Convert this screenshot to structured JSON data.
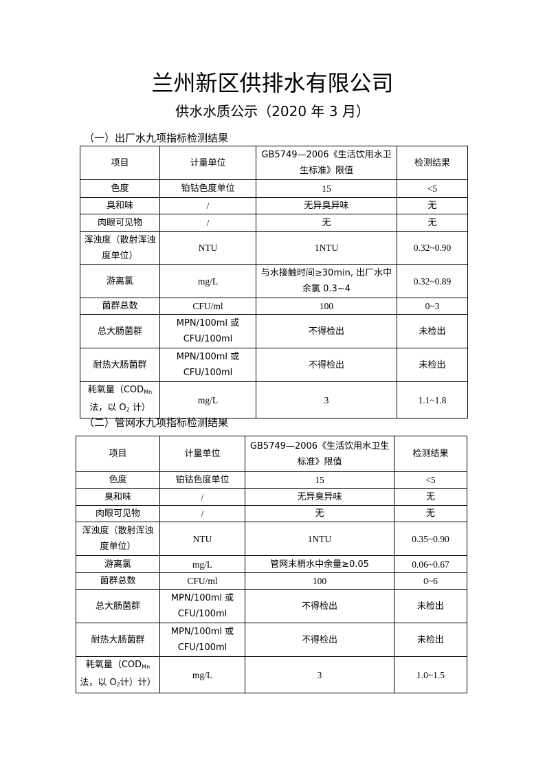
{
  "title": "兰州新区供排水有限公司",
  "subtitle": "供水水质公示（2020 年 3 月）",
  "tables": [
    {
      "heading": "（一）出厂水九项指标检测结果",
      "header": [
        "项目",
        "计量单位",
        "GB5749—2006《生活饮用水卫生标准》限值",
        "检测结果"
      ],
      "rows": [
        [
          "色度",
          "铂钴色度单位",
          "15",
          "<5"
        ],
        [
          "臭和味",
          "/",
          "无异臭异味",
          "无"
        ],
        [
          "肉眼可见物",
          "/",
          "无",
          "无"
        ],
        [
          "浑浊度（散射浑浊度单位）",
          "NTU",
          "1NTU",
          "0.32~0.90"
        ],
        [
          "游离氯",
          "mg/L",
          "与水接触时间≥30min, 出厂水中余氯 0.3~4",
          "0.32~0.89"
        ],
        [
          "菌群总数",
          "CFU/ml",
          "100",
          "0~3"
        ],
        [
          "总大肠菌群",
          "MPN/100ml 或 CFU/100ml",
          "不得检出",
          "未检出"
        ],
        [
          "耐热大肠菌群",
          "MPN/100ml 或 CFU/100ml",
          "不得检出",
          "未检出"
        ]
      ],
      "last": {
        "item_a": "耗氧量（COD",
        "sub_a": "Mn",
        "item_b": "法，以 O",
        "sub_b": "2",
        "item_c": " 计）",
        "unit": "mg/L",
        "limit": "3",
        "result": "1.1~1.8"
      }
    },
    {
      "heading": "（二）管网水九项指标检测结果",
      "header": [
        "项目",
        "计量单位",
        "GB5749—2006《生活饮用水卫生标准》限值",
        "检测结果"
      ],
      "rows": [
        [
          "色度",
          "铂钴色度单位",
          "15",
          "<5"
        ],
        [
          "臭和味",
          "/",
          "无异臭异味",
          "无"
        ],
        [
          "肉眼可见物",
          "/",
          "无",
          "无"
        ],
        [
          "浑浊度（散射浑浊度单位）",
          "NTU",
          "1NTU",
          "0.35~0.90"
        ],
        [
          "游离氯",
          "mg/L",
          "管网末梢水中余量≥0.05",
          "0.06~0.67"
        ],
        [
          "菌群总数",
          "CFU/ml",
          "100",
          "0~6"
        ],
        [
          "总大肠菌群",
          "MPN/100ml 或 CFU/100ml",
          "不得检出",
          "未检出"
        ],
        [
          "耐热大肠菌群",
          "MPN/100ml 或 CFU/100ml",
          "不得检出",
          "未检出"
        ]
      ],
      "last": {
        "item_a": "耗氧量（COD",
        "sub_a": "Mn",
        "item_b": "法，以 O",
        "sub_b": "2",
        "item_c": "计）计）",
        "unit": "mg/L",
        "limit": "3",
        "result": "1.0~1.5"
      }
    }
  ]
}
